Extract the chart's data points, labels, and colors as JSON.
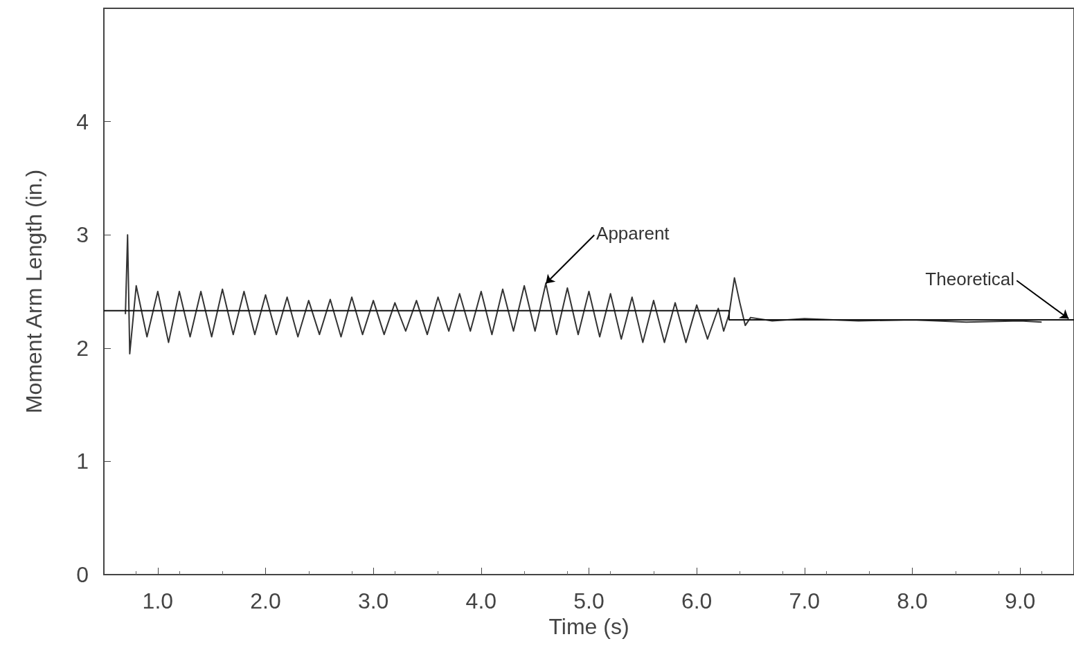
{
  "chart_data": {
    "type": "line",
    "xlabel": "Time (s)",
    "ylabel": "Moment Arm Length (in.)",
    "xlim": [
      0.5,
      9.5
    ],
    "xticks": [
      {
        "value": 1,
        "label": "1.0"
      },
      {
        "value": 2,
        "label": "2.0"
      },
      {
        "value": 3,
        "label": "3.0"
      },
      {
        "value": 4,
        "label": "4.0"
      },
      {
        "value": 5,
        "label": "5.0"
      },
      {
        "value": 6,
        "label": "6.0"
      },
      {
        "value": 7,
        "label": "7.0"
      },
      {
        "value": 8,
        "label": "8.0"
      },
      {
        "value": 9,
        "label": "9.0"
      }
    ],
    "ylim": [
      0,
      5
    ],
    "yticks": [
      0,
      1,
      2,
      3,
      4
    ],
    "grid": false,
    "marker": "none",
    "line_style": "solid",
    "series": [
      {
        "color": "#333333",
        "x": [
          0.7,
          0.72,
          0.74,
          0.8,
          0.9,
          1.0,
          1.1,
          1.2,
          1.3,
          1.4,
          1.5,
          1.6,
          1.7,
          1.8,
          1.9,
          2.0,
          2.1,
          2.2,
          2.3,
          2.4,
          2.5,
          2.6,
          2.7,
          2.8,
          2.9,
          3.0,
          3.1,
          3.2,
          3.3,
          3.4,
          3.5,
          3.6,
          3.7,
          3.8,
          3.9,
          4.0,
          4.1,
          4.2,
          4.3,
          4.4,
          4.5,
          4.6,
          4.7,
          4.8,
          4.9,
          5.0,
          5.1,
          5.2,
          5.3,
          5.4,
          5.5,
          5.6,
          5.7,
          5.8,
          5.9,
          6.0,
          6.1,
          6.2,
          6.25,
          6.3,
          6.35,
          6.4,
          6.45,
          6.5,
          6.7,
          7.0,
          7.5,
          8.0,
          8.5,
          9.0,
          9.2
        ],
        "values": [
          2.3,
          3.0,
          1.95,
          2.55,
          2.1,
          2.5,
          2.05,
          2.5,
          2.1,
          2.5,
          2.1,
          2.52,
          2.12,
          2.5,
          2.12,
          2.47,
          2.12,
          2.45,
          2.1,
          2.42,
          2.12,
          2.43,
          2.1,
          2.45,
          2.12,
          2.42,
          2.12,
          2.4,
          2.15,
          2.42,
          2.12,
          2.45,
          2.15,
          2.48,
          2.15,
          2.5,
          2.12,
          2.52,
          2.15,
          2.55,
          2.15,
          2.57,
          2.12,
          2.53,
          2.12,
          2.5,
          2.1,
          2.48,
          2.08,
          2.45,
          2.05,
          2.42,
          2.05,
          2.4,
          2.05,
          2.38,
          2.08,
          2.35,
          2.15,
          2.3,
          2.62,
          2.4,
          2.2,
          2.27,
          2.24,
          2.26,
          2.24,
          2.25,
          2.23,
          2.24,
          2.23
        ]
      },
      {
        "color": "#111111",
        "x": [
          0.5,
          6.3,
          6.3,
          9.5
        ],
        "values": [
          2.33,
          2.33,
          2.25,
          2.25
        ]
      }
    ],
    "annotations": [
      {
        "text": "Apparent",
        "x": 4.6,
        "y": 2.57
      },
      {
        "text": "Theoretical",
        "x": 9.45,
        "y": 2.26
      }
    ]
  }
}
